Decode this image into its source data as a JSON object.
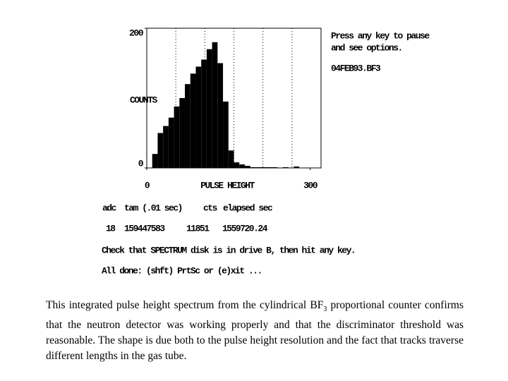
{
  "chart_data": {
    "type": "histogram",
    "ylabel": "COUNTS",
    "xlabel": "PULSE HEIGHT",
    "bins": [
      0,
      10,
      20,
      30,
      40,
      50,
      60,
      70,
      80,
      90,
      100,
      110,
      120,
      130,
      140,
      150,
      160,
      170,
      180,
      190,
      200,
      210,
      220,
      230,
      240,
      250,
      260,
      270,
      280,
      290,
      300,
      310,
      320
    ],
    "values": [
      0,
      20,
      50,
      60,
      72,
      88,
      100,
      120,
      135,
      145,
      155,
      170,
      180,
      150,
      95,
      25,
      8,
      5,
      3,
      1,
      1,
      1,
      1,
      1,
      0,
      1,
      0,
      2,
      0,
      0,
      0,
      0
    ],
    "color": "#000000",
    "xlim": [
      0,
      320
    ],
    "ylim": [
      0,
      200
    ],
    "xticks": [
      0,
      300
    ],
    "yticks": [
      0,
      200
    ]
  },
  "screen": {
    "prompt": [
      "Press any key to pause",
      "and see options."
    ],
    "filename": "04FEB93.BF3",
    "table": {
      "headers": [
        "adc",
        "tam (.01 sec)",
        "cts",
        "elapsed sec"
      ],
      "row": [
        "18",
        "159447583",
        "11851",
        "1559720.24"
      ]
    },
    "messages": [
      "Check that SPECTRUM disk is in drive B, then hit any key.",
      "All done: (shft) PrtSc or (e)xit ..."
    ]
  },
  "caption": {
    "parts": [
      "This integrated pulse height spectrum from the cylindrical BF",
      "3",
      " proportional counter confirms that the neutron detector was working properly and that the discriminator threshold was reasonable. The shape is due both to the pulse height resolution and the fact that tracks traverse different lengths in the gas tube."
    ]
  }
}
